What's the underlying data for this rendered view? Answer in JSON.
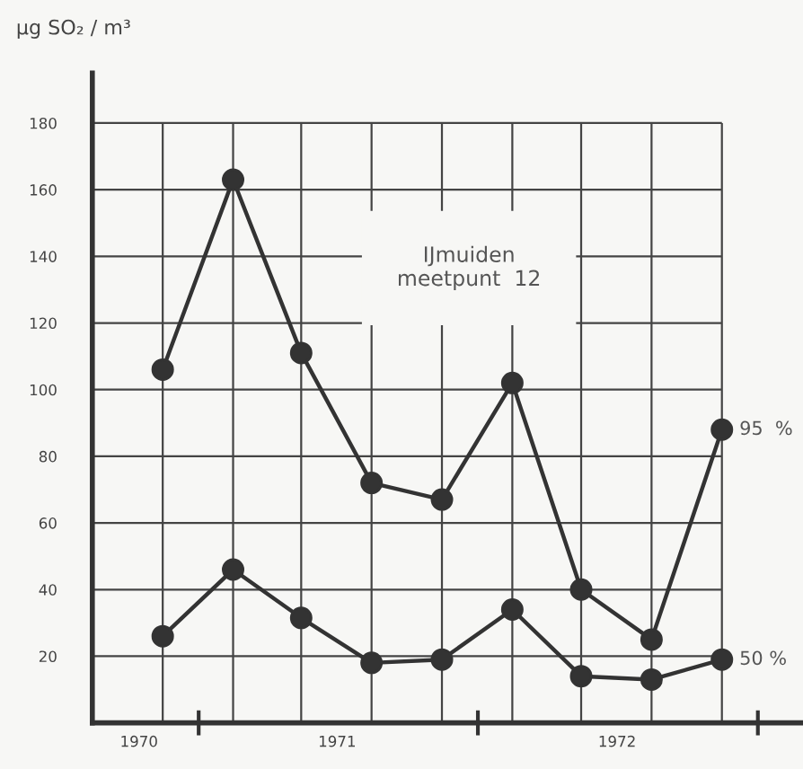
{
  "chart_data": {
    "type": "line",
    "ylabel": "µg SO₂ / m³",
    "annotations": [
      "IJmuiden\nmeetpunt  12"
    ],
    "x": [
      "1970-11-15",
      "1971-02-15",
      "1971-05-15",
      "1971-08-15",
      "1971-11-15",
      "1972-02-15",
      "1972-05-15",
      "1972-08-15",
      "1972-11-15"
    ],
    "series": [
      {
        "name": "95  %",
        "color": "#333333",
        "values": [
          106,
          163,
          111,
          72,
          67,
          102,
          40,
          25,
          88
        ]
      },
      {
        "name": "50 %",
        "color": "#333333",
        "values": [
          26,
          46,
          31.5,
          18,
          19,
          34,
          14,
          13,
          19
        ]
      }
    ],
    "xlim": [
      "1970-08-15",
      "1973-03-01"
    ],
    "ylim": [
      0,
      195
    ],
    "xticks": [
      {
        "value": "1970-10-15",
        "label": "1970"
      },
      {
        "value": "1971-01-01",
        "label": null
      },
      {
        "value": "1971-07-01",
        "label": "1971"
      },
      {
        "value": "1972-01-01",
        "label": null
      },
      {
        "value": "1972-07-01",
        "label": "1972"
      },
      {
        "value": "1973-01-01",
        "label": null
      }
    ],
    "yticks": [
      20,
      40,
      60,
      80,
      100,
      120,
      140,
      160,
      180
    ],
    "grid": true,
    "marker": "circle",
    "line_style": "solid",
    "legend": false
  }
}
